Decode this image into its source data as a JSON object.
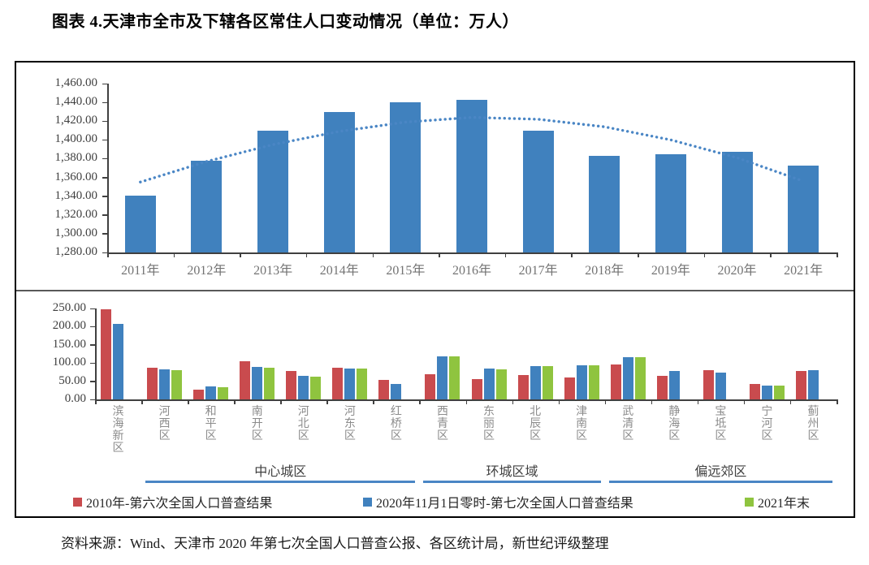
{
  "title": "图表 4.天津市全市及下辖各区常住人口变动情况（单位：万人）",
  "source_note": "资料来源：Wind、天津市 2020 年第七次全国人口普查公报、各区统计局，新世纪评级整理",
  "colors": {
    "bar_blue": "#4081BE",
    "bar_red": "#C94B4E",
    "bar_green": "#8FC43F",
    "trend_line": "#4A86C5",
    "group_underline": "#4A86C5",
    "axis_text": "#404040",
    "category_text": "#8c8c8c",
    "frame_border": "#000000",
    "divider": "#595959"
  },
  "chart_data": [
    {
      "type": "bar",
      "title": "",
      "categories": [
        "2011年",
        "2012年",
        "2013年",
        "2014年",
        "2015年",
        "2016年",
        "2017年",
        "2018年",
        "2019年",
        "2020年",
        "2021年"
      ],
      "values": [
        1341,
        1378,
        1410,
        1430,
        1440,
        1443,
        1410,
        1383,
        1385,
        1387,
        1373
      ],
      "trend_dotted": [
        1355,
        1377,
        1395,
        1409,
        1419,
        1424,
        1422,
        1414,
        1400,
        1381,
        1356
      ],
      "ylim": [
        1280,
        1460
      ],
      "ytick_labels": [
        "1,460.00",
        "1,440.00",
        "1,420.00",
        "1,400.00",
        "1,380.00",
        "1,360.00",
        "1,340.00",
        "1,320.00",
        "1,300.00",
        "1,280.00"
      ],
      "grid": false,
      "legend": "none",
      "bar_color_key": "bar_blue"
    },
    {
      "type": "bar",
      "title": "",
      "categories": [
        "滨海新区",
        "河西区",
        "和平区",
        "南开区",
        "河北区",
        "河东区",
        "红桥区",
        "西青区",
        "东丽区",
        "北辰区",
        "津南区",
        "武清区",
        "静海区",
        "宝坻区",
        "宁河区",
        "蓟州区"
      ],
      "series": [
        {
          "name": "2010年-第六次全国人口普查结果",
          "color_key": "bar_red",
          "values": [
            248.2,
            87.0,
            27.3,
            104.5,
            78.8,
            86.1,
            53.1,
            68.5,
            56.9,
            66.9,
            59.3,
            95.0,
            64.7,
            79.9,
            41.6,
            78.4
          ]
        },
        {
          "name": "2020年11月1日零时-第七次全国人口普查结果",
          "color_key": "bar_blue",
          "values": [
            206.5,
            82.0,
            35.5,
            88.6,
            64.5,
            85.9,
            43.5,
            119.2,
            85.7,
            90.9,
            92.9,
            115.0,
            78.7,
            72.9,
            38.5,
            80.9
          ]
        },
        {
          "name": "2021年末",
          "color_key": "bar_green",
          "values": [
            null,
            81.2,
            34.4,
            86.6,
            62.0,
            84.0,
            null,
            119.0,
            83.4,
            91.4,
            93.3,
            115.4,
            null,
            null,
            36.9,
            null
          ]
        }
      ],
      "ylim": [
        0,
        250
      ],
      "ytick_labels": [
        "250.00",
        "200.00",
        "150.00",
        "100.00",
        "50.00",
        "0.00"
      ],
      "grid": false,
      "legend_position": "bottom",
      "region_groups": [
        {
          "label": "中心城区",
          "from_category": "河西区",
          "to_category": "红桥区"
        },
        {
          "label": "环城区域",
          "from_category": "西青区",
          "to_category": "津南区"
        },
        {
          "label": "偏远郊区",
          "from_category": "武清区",
          "to_category": "蓟州区"
        }
      ]
    }
  ]
}
